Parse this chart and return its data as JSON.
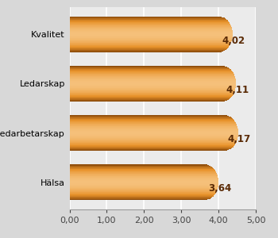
{
  "categories": [
    "Hälsa",
    "Medarbetarskap",
    "Ledarskap",
    "Kvalitet"
  ],
  "values": [
    3.64,
    4.17,
    4.11,
    4.02
  ],
  "labels": [
    "3,64",
    "4,17",
    "4,11",
    "4,02"
  ],
  "xlim": [
    0,
    5.0
  ],
  "xticks": [
    0.0,
    1.0,
    2.0,
    3.0,
    4.0,
    5.0
  ],
  "xtick_labels": [
    "0,00",
    "1,00",
    "2,00",
    "3,00",
    "4,00",
    "5,00"
  ],
  "bar_color_light": "#f5c07a",
  "bar_color_mid": "#e8922a",
  "bar_color_dark": "#8B4A0A",
  "label_color": "#5a2a05",
  "background_color": "#d8d8d8",
  "plot_bg_color": "#ebebeb",
  "grid_color": "#ffffff",
  "bar_height": 0.72,
  "label_fontsize": 8.5,
  "tick_fontsize": 8.0,
  "num_gradient_steps": 60
}
